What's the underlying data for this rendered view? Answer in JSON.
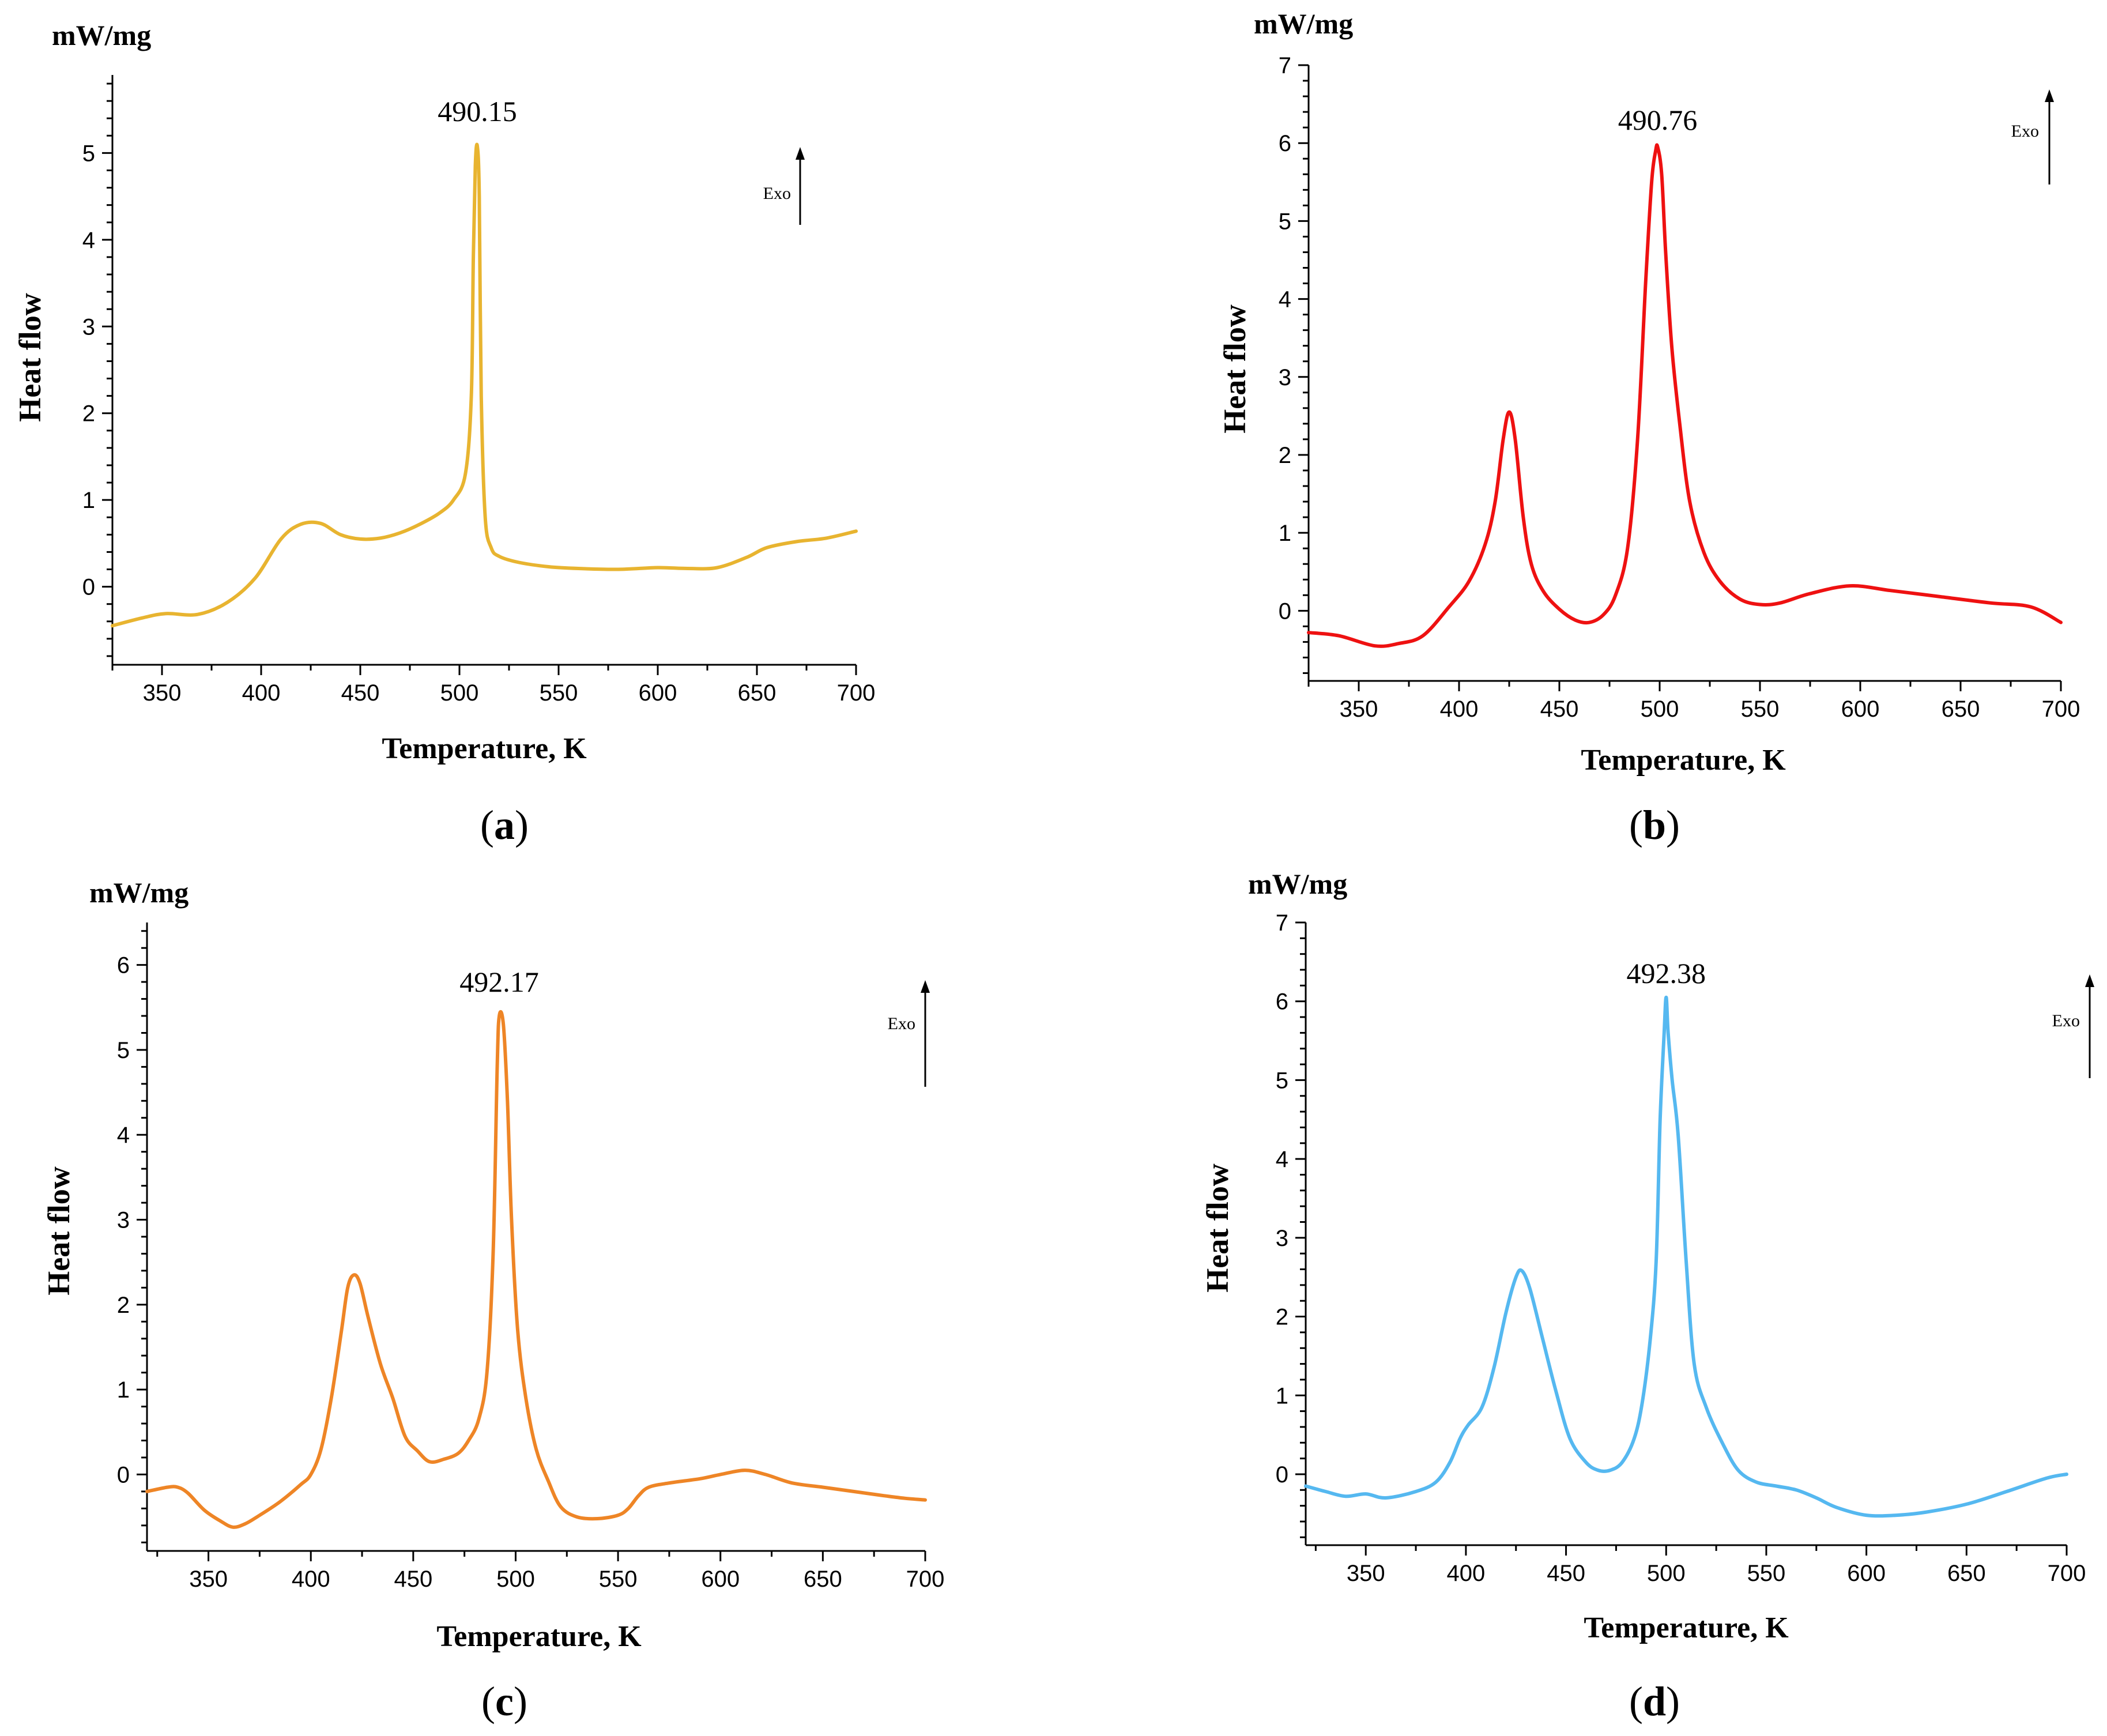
{
  "figure": {
    "panels": [
      {
        "caption_open": "(",
        "caption_letter": "a",
        "caption_close": ")"
      },
      {
        "caption_open": "(",
        "caption_letter": "b",
        "caption_close": ")"
      },
      {
        "caption_open": "(",
        "caption_letter": "c",
        "caption_close": ")"
      },
      {
        "caption_open": "(",
        "caption_letter": "d",
        "caption_close": ")"
      }
    ]
  },
  "chart_data": [
    {
      "id": "a",
      "type": "line",
      "unit": "mW/mg",
      "ylabel": "Heat flow",
      "xlabel": "Temperature, K",
      "xlim": [
        325,
        700
      ],
      "ylim": [
        -0.9,
        5.9
      ],
      "xticks": [
        350,
        400,
        450,
        500,
        550,
        600,
        650,
        700
      ],
      "yticks": [
        0,
        1,
        2,
        3,
        4,
        5
      ],
      "color": "#E8B430",
      "peak_label": "490.15",
      "peak_x": 509,
      "peak_y": 5.08,
      "exo_label": "Exo",
      "series": [
        {
          "name": "a",
          "x": [
            325,
            340,
            352,
            368,
            383,
            397,
            410,
            420,
            430,
            440,
            450,
            460,
            470,
            480,
            490,
            497,
            503,
            506,
            507,
            508,
            509,
            510,
            511,
            513,
            516,
            520,
            530,
            545,
            560,
            580,
            600,
            615,
            630,
            645,
            655,
            670,
            685,
            700
          ],
          "y": [
            -0.45,
            -0.36,
            -0.31,
            -0.32,
            -0.18,
            0.1,
            0.55,
            0.72,
            0.73,
            0.6,
            0.55,
            0.56,
            0.62,
            0.72,
            0.85,
            1.0,
            1.3,
            2.2,
            3.8,
            4.85,
            5.08,
            4.5,
            2.2,
            0.8,
            0.45,
            0.35,
            0.28,
            0.23,
            0.21,
            0.2,
            0.22,
            0.21,
            0.22,
            0.34,
            0.45,
            0.52,
            0.56,
            0.64
          ]
        }
      ]
    },
    {
      "id": "b",
      "type": "line",
      "unit": "mW/mg",
      "ylabel": "Heat flow",
      "xlabel": "Temperature, K",
      "xlim": [
        325,
        700
      ],
      "ylim": [
        -0.9,
        7.0
      ],
      "xticks": [
        350,
        400,
        450,
        500,
        550,
        600,
        650,
        700
      ],
      "yticks": [
        0,
        1,
        2,
        3,
        4,
        5,
        6,
        7
      ],
      "color": "#EE1111",
      "peak_label": "490.76",
      "peak_x": 499,
      "peak_y": 5.95,
      "exo_label": "Exo",
      "series": [
        {
          "name": "b",
          "x": [
            325,
            340,
            358,
            370,
            382,
            395,
            405,
            413,
            418,
            422,
            425,
            428,
            432,
            436,
            442,
            450,
            458,
            465,
            472,
            478,
            484,
            489,
            493,
            496,
            498,
            499,
            501,
            503,
            506,
            510,
            515,
            522,
            530,
            540,
            550,
            560,
            575,
            595,
            615,
            640,
            665,
            685,
            700
          ],
          "y": [
            -0.28,
            -0.32,
            -0.45,
            -0.42,
            -0.32,
            0.05,
            0.38,
            0.85,
            1.4,
            2.2,
            2.55,
            2.2,
            1.2,
            0.6,
            0.25,
            0.02,
            -0.12,
            -0.15,
            -0.05,
            0.2,
            0.8,
            2.2,
            4.2,
            5.5,
            5.9,
            5.95,
            5.6,
            4.6,
            3.4,
            2.4,
            1.4,
            0.75,
            0.38,
            0.15,
            0.08,
            0.1,
            0.22,
            0.32,
            0.26,
            0.18,
            0.1,
            0.05,
            -0.15
          ]
        }
      ]
    },
    {
      "id": "c",
      "type": "line",
      "unit": "mW/mg",
      "ylabel": "Heat flow",
      "xlabel": "Temperature, K",
      "xlim": [
        320,
        700
      ],
      "ylim": [
        -0.9,
        6.5
      ],
      "xticks": [
        350,
        400,
        450,
        500,
        550,
        600,
        650,
        700
      ],
      "yticks": [
        0,
        1,
        2,
        3,
        4,
        5,
        6
      ],
      "color": "#EE8526",
      "peak_label": "492.17",
      "peak_x": 492,
      "peak_y": 5.4,
      "exo_label": "Exo",
      "series": [
        {
          "name": "c",
          "x": [
            320,
            330,
            335,
            340,
            348,
            356,
            362,
            368,
            375,
            385,
            395,
            400,
            405,
            410,
            415,
            418,
            421,
            424,
            428,
            434,
            440,
            446,
            452,
            458,
            465,
            472,
            477,
            482,
            486,
            489,
            491,
            492,
            494,
            496,
            498,
            501,
            505,
            510,
            516,
            522,
            530,
            540,
            550,
            555,
            560,
            565,
            575,
            590,
            600,
            612,
            622,
            635,
            650,
            665,
            680,
            690,
            700
          ],
          "y": [
            -0.2,
            -0.15,
            -0.15,
            -0.22,
            -0.42,
            -0.55,
            -0.62,
            -0.58,
            -0.48,
            -0.32,
            -0.12,
            0.0,
            0.3,
            0.9,
            1.7,
            2.2,
            2.35,
            2.25,
            1.85,
            1.3,
            0.9,
            0.45,
            0.28,
            0.15,
            0.18,
            0.25,
            0.4,
            0.65,
            1.2,
            2.6,
            4.8,
            5.4,
            5.3,
            4.4,
            3.0,
            1.7,
            0.9,
            0.3,
            -0.08,
            -0.38,
            -0.5,
            -0.52,
            -0.48,
            -0.4,
            -0.25,
            -0.15,
            -0.1,
            -0.05,
            0.0,
            0.05,
            0.0,
            -0.1,
            -0.15,
            -0.2,
            -0.25,
            -0.28,
            -0.3
          ]
        }
      ]
    },
    {
      "id": "d",
      "type": "line",
      "unit": "mW/mg",
      "ylabel": "Heat flow",
      "xlabel": "Temperature, K",
      "xlim": [
        320,
        700
      ],
      "ylim": [
        -0.9,
        7.0
      ],
      "xticks": [
        350,
        400,
        450,
        500,
        550,
        600,
        650,
        700
      ],
      "yticks": [
        0,
        1,
        2,
        3,
        4,
        5,
        6,
        7
      ],
      "color": "#55B8F0",
      "peak_label": "492.38",
      "peak_x": 500,
      "peak_y": 6.05,
      "exo_label": "Exo",
      "series": [
        {
          "name": "d",
          "x": [
            320,
            330,
            340,
            350,
            360,
            375,
            385,
            392,
            397,
            401,
            408,
            414,
            420,
            425,
            428,
            432,
            438,
            445,
            452,
            460,
            466,
            472,
            478,
            484,
            488,
            492,
            495,
            497,
            499,
            500,
            501,
            503,
            506,
            510,
            514,
            520,
            528,
            536,
            545,
            555,
            565,
            575,
            585,
            600,
            615,
            630,
            650,
            670,
            690,
            700
          ],
          "y": [
            -0.15,
            -0.22,
            -0.28,
            -0.25,
            -0.3,
            -0.22,
            -0.1,
            0.15,
            0.45,
            0.62,
            0.85,
            1.35,
            2.05,
            2.5,
            2.58,
            2.35,
            1.75,
            1.05,
            0.45,
            0.15,
            0.05,
            0.05,
            0.15,
            0.45,
            0.9,
            1.7,
            2.7,
            4.5,
            5.6,
            6.05,
            5.6,
            5.0,
            4.3,
            2.7,
            1.4,
            0.85,
            0.4,
            0.05,
            -0.1,
            -0.15,
            -0.2,
            -0.3,
            -0.42,
            -0.52,
            -0.52,
            -0.48,
            -0.38,
            -0.22,
            -0.05,
            0.0
          ]
        }
      ]
    }
  ]
}
